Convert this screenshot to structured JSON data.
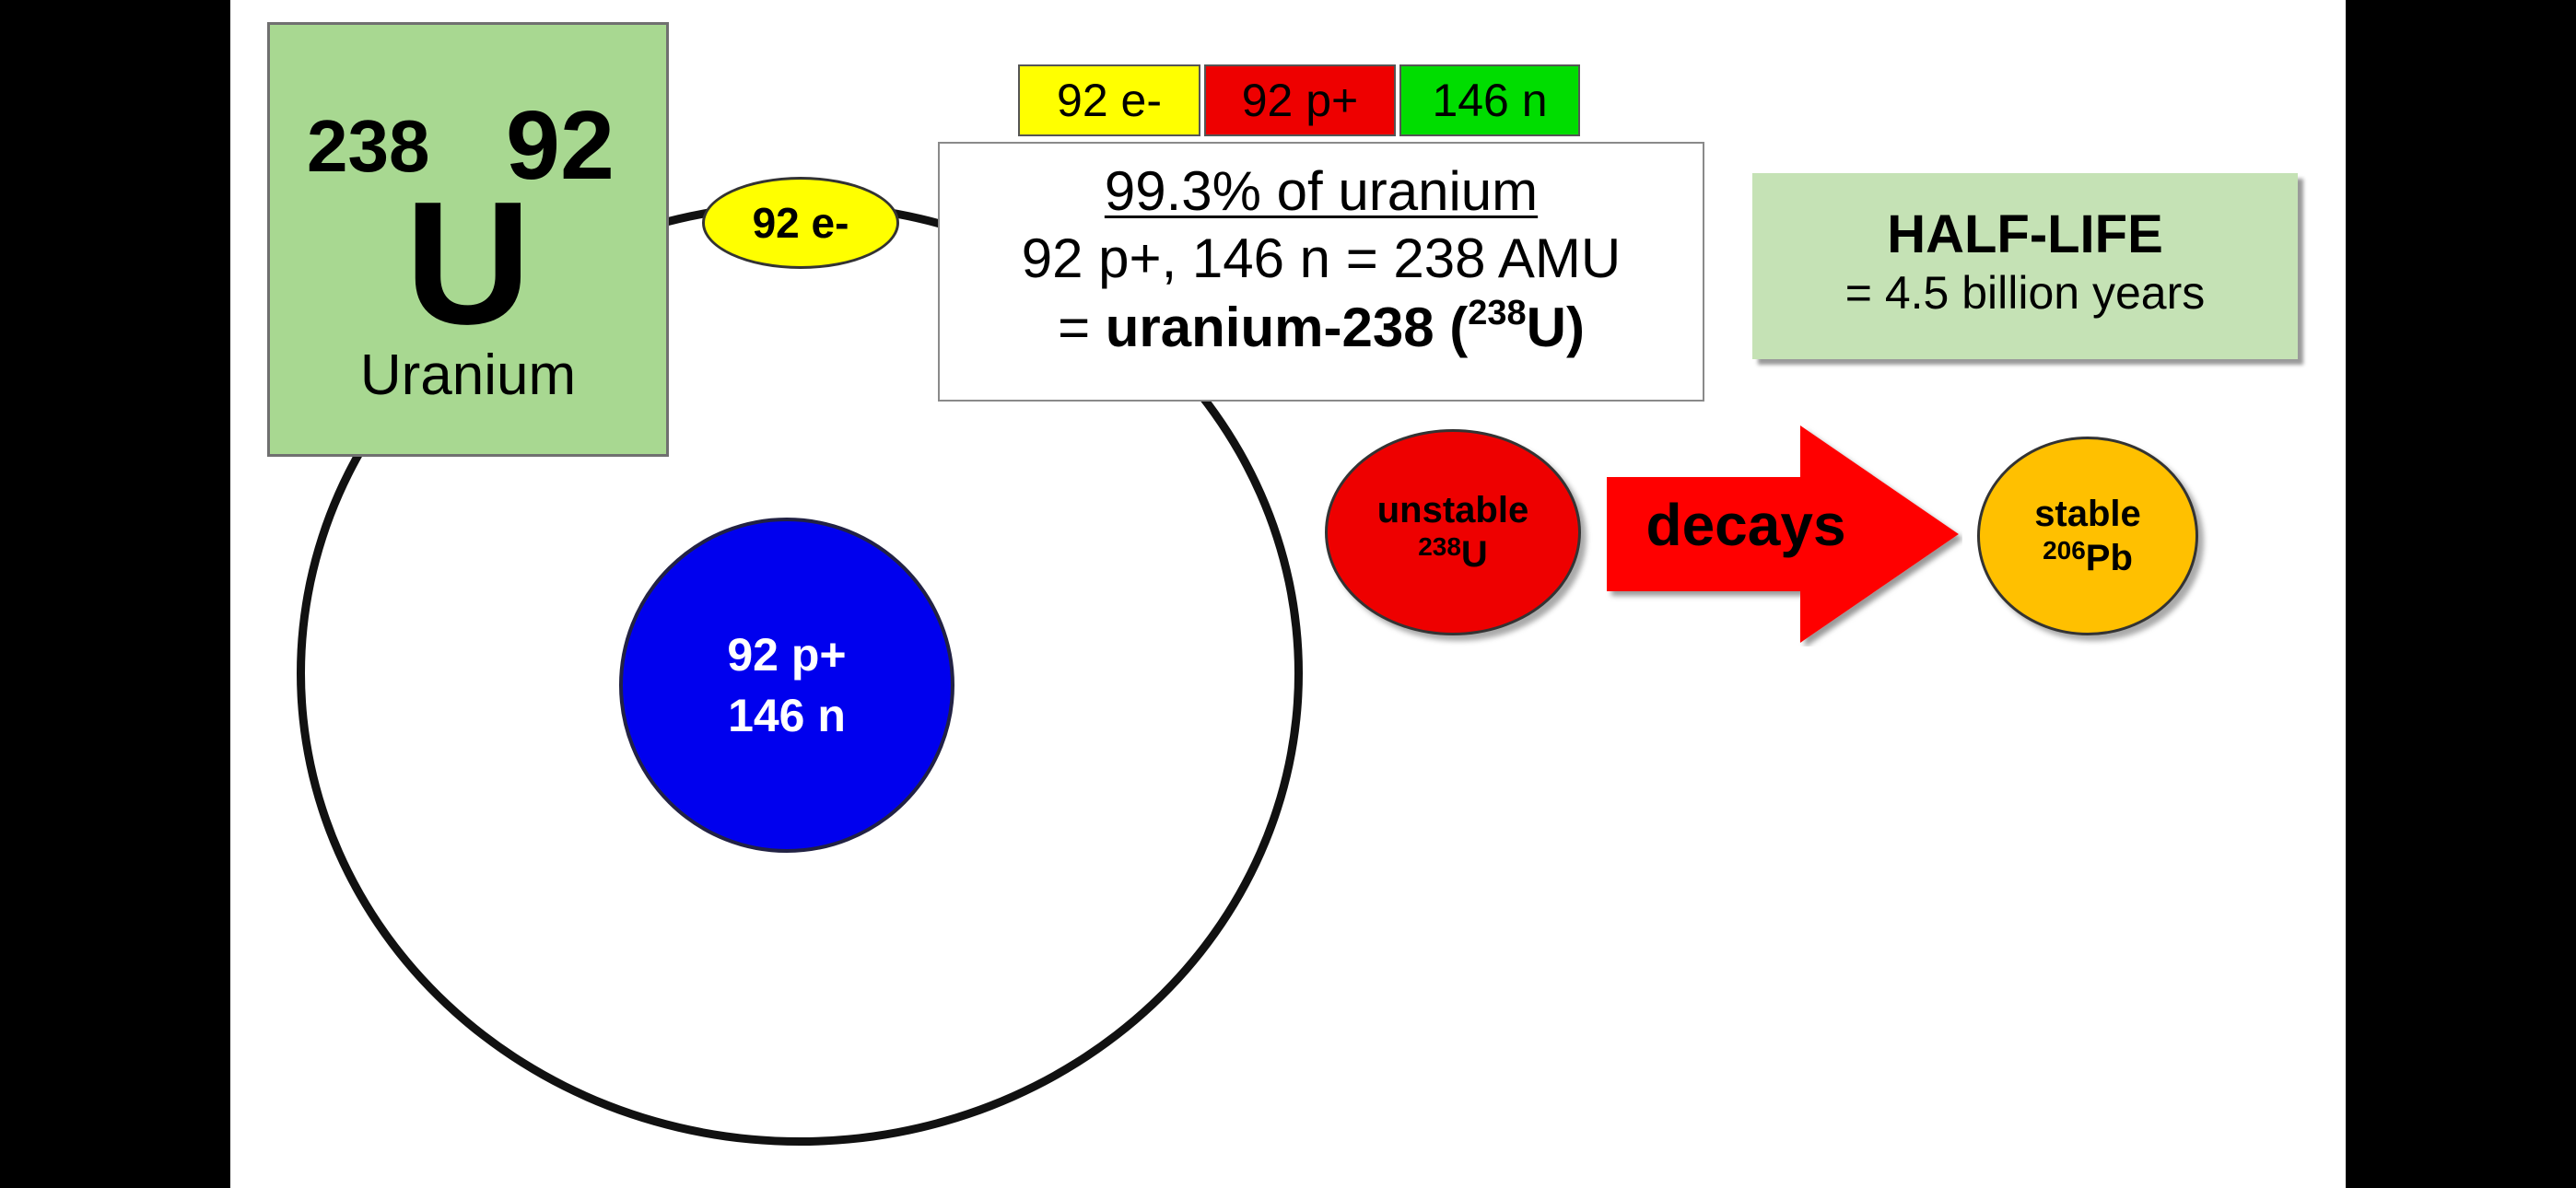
{
  "element": {
    "mass_number": "238",
    "atomic_number": "92",
    "symbol": "U",
    "name": "Uranium"
  },
  "electron_label": "92 e-",
  "nucleus": {
    "line1": "92 p+",
    "line2": "146 n"
  },
  "particles": {
    "electrons": "92 e-",
    "protons": "92 p+",
    "neutrons": "146 n"
  },
  "info": {
    "line1": "99.3% of uranium",
    "line2": "92 p+, 146 n = 238 AMU",
    "line3_prefix": "= ",
    "line3_bold": "uranium-238 (",
    "line3_sup": "238",
    "line3_end": "U)"
  },
  "halflife": {
    "title": "HALF-LIFE",
    "value": "= 4.5 billion years"
  },
  "unstable": {
    "label": "unstable",
    "sup": "238",
    "symbol": "U"
  },
  "arrow": {
    "label": "decays"
  },
  "stable": {
    "label": "stable",
    "sup": "206",
    "symbol": "Pb"
  },
  "colors": {
    "element_box": "#a8d891",
    "nucleus": "#0000ee",
    "electron": "#ffff00",
    "protons": "#ee0000",
    "neutrons": "#00dd00",
    "halflife": "#c5e2b5",
    "unstable": "#ee0000",
    "stable": "#ffc000",
    "arrow": "#ff0000"
  }
}
